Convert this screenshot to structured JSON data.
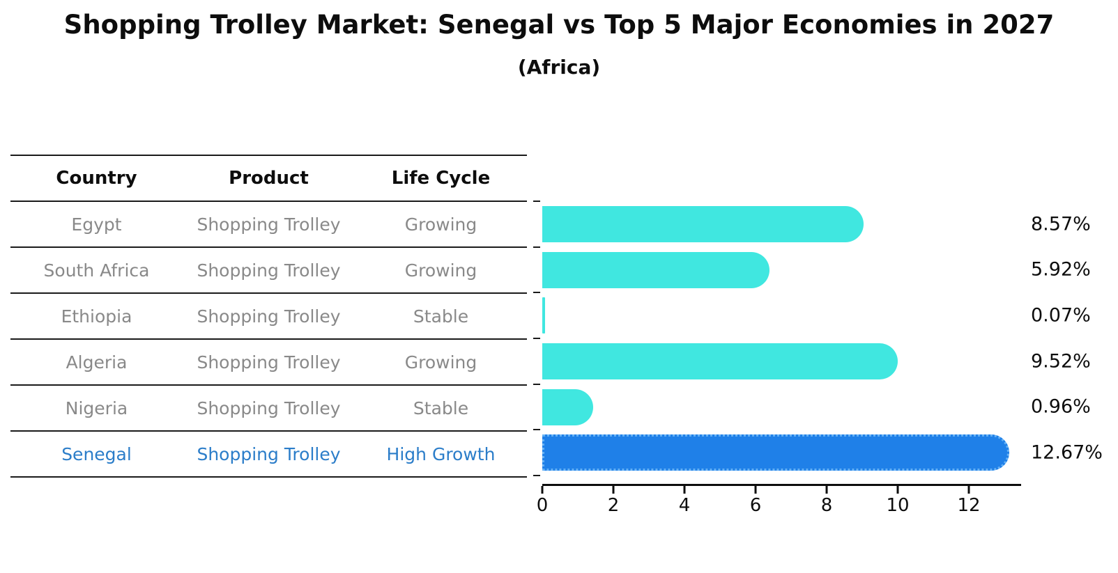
{
  "title": "Shopping Trolley Market: Senegal vs Top 5 Major Economies in 2027",
  "subtitle": "(Africa)",
  "table": {
    "headers": [
      "Country",
      "Product",
      "Life Cycle"
    ],
    "rows": [
      {
        "country": "Egypt",
        "product": "Shopping Trolley",
        "life_cycle": "Growing",
        "highlight": false
      },
      {
        "country": "South Africa",
        "product": "Shopping Trolley",
        "life_cycle": "Growing",
        "highlight": false
      },
      {
        "country": "Ethiopia",
        "product": "Shopping Trolley",
        "life_cycle": "Stable",
        "highlight": false
      },
      {
        "country": "Algeria",
        "product": "Shopping Trolley",
        "life_cycle": "Growing",
        "highlight": false
      },
      {
        "country": "Nigeria",
        "product": "Shopping Trolley",
        "life_cycle": "Stable",
        "highlight": false
      },
      {
        "country": "Senegal",
        "product": "Shopping Trolley",
        "life_cycle": "High Growth",
        "highlight": true
      }
    ]
  },
  "chart_data": {
    "type": "bar",
    "orientation": "horizontal",
    "title": "Shopping Trolley Market: Senegal vs Top 5 Major Economies in 2027",
    "subtitle": "(Africa)",
    "categories": [
      "Egypt",
      "South Africa",
      "Ethiopia",
      "Algeria",
      "Nigeria",
      "Senegal"
    ],
    "values": [
      8.57,
      5.92,
      0.07,
      9.52,
      0.96,
      12.67
    ],
    "value_labels": [
      "8.57%",
      "5.92%",
      "0.07%",
      "9.52%",
      "0.96%",
      "12.67%"
    ],
    "xtick_labels": [
      "0",
      "2",
      "4",
      "6",
      "8",
      "10",
      "12"
    ],
    "xtick_values": [
      0,
      2,
      4,
      6,
      8,
      10,
      12
    ],
    "xlim": [
      0,
      13.47
    ],
    "grid": false,
    "legend": false,
    "highlight_index": 5,
    "bar_color": "#40e7e0",
    "highlight_bar_color": "#1f80e8",
    "highlight_border_color": "#66b2f6",
    "highlight_text_color": "#2b7dc9",
    "axis_color": "#0d0d0d",
    "muted_text_color": "#898989"
  }
}
